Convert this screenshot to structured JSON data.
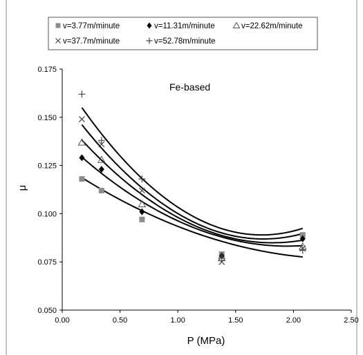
{
  "chart_data": {
    "type": "scatter",
    "title": "",
    "annotation": "Fe-based",
    "xlabel": "P (MPa)",
    "ylabel": "μ",
    "xlim": [
      0,
      2.5
    ],
    "ylim": [
      0.05,
      0.175
    ],
    "x_ticks": [
      "0.00",
      "0.50",
      "1.00",
      "1.50",
      "2.00",
      "2.50"
    ],
    "y_ticks": [
      "0.050",
      "0.075",
      "0.100",
      "0.125",
      "0.150",
      "0.175"
    ],
    "grid": false,
    "legend_position": "top",
    "series": [
      {
        "name": "v=3.77m/minute",
        "marker": "square",
        "x": [
          0.17,
          0.34,
          0.69,
          1.38,
          2.08
        ],
        "y": [
          0.118,
          0.112,
          0.097,
          0.079,
          0.089
        ],
        "fit_curve": [
          0.00826,
          -0.04011,
          0.12527
        ]
      },
      {
        "name": "v=11.31m/minute",
        "marker": "diamond",
        "x": [
          0.17,
          0.34,
          0.69,
          1.38,
          2.08
        ],
        "y": [
          0.129,
          0.123,
          0.101,
          0.078,
          0.087
        ],
        "fit_curve": [
          0.01459,
          -0.05684,
          0.13854
        ]
      },
      {
        "name": "v=22.62m/minute",
        "marker": "triangle",
        "x": [
          0.17,
          0.34,
          0.69,
          1.38,
          2.08
        ],
        "y": [
          0.137,
          0.128,
          0.105,
          0.077,
          0.083
        ],
        "fit_curve": [
          0.01958,
          -0.07124,
          0.14972
        ]
      },
      {
        "name": "v=37.7m/minute",
        "marker": "x",
        "x": [
          0.17,
          0.34,
          0.69,
          1.38,
          2.08
        ],
        "y": [
          0.149,
          0.136,
          0.112,
          0.075,
          0.082
        ],
        "fit_curve": [
          0.02402,
          -0.08362,
          0.15967
        ]
      },
      {
        "name": "v=52.78m/minute",
        "marker": "plus",
        "x": [
          0.17,
          0.34,
          0.69,
          1.38,
          2.08
        ],
        "y": [
          0.162,
          0.138,
          0.118,
          0.077,
          0.081
        ],
        "fit_curve": [
          0.02727,
          -0.09415,
          0.17024
        ]
      }
    ]
  }
}
